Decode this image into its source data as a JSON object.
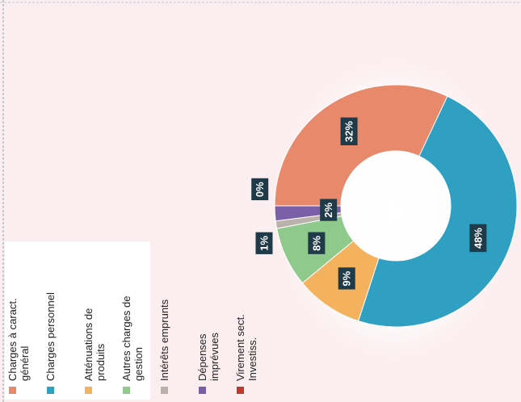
{
  "chart_data": {
    "type": "donut",
    "categories": [
      "Charges à caract. général",
      "Charges personnel",
      "Atténuations de produits",
      "Autres charges de gestion",
      "Intérêts emprunts",
      "Dépenses imprévues",
      "Virement sect. Investiss."
    ],
    "values": [
      32,
      48,
      9,
      8,
      1,
      2,
      0
    ],
    "value_labels": [
      "32%",
      "48%",
      "9%",
      "8%",
      "1%",
      "2%",
      "0%"
    ],
    "colors": [
      "#e8896c",
      "#2f9fc2",
      "#f4b25e",
      "#8fca8c",
      "#b9b1aa",
      "#7a5ea8",
      "#c0392b"
    ],
    "legend": "left"
  }
}
